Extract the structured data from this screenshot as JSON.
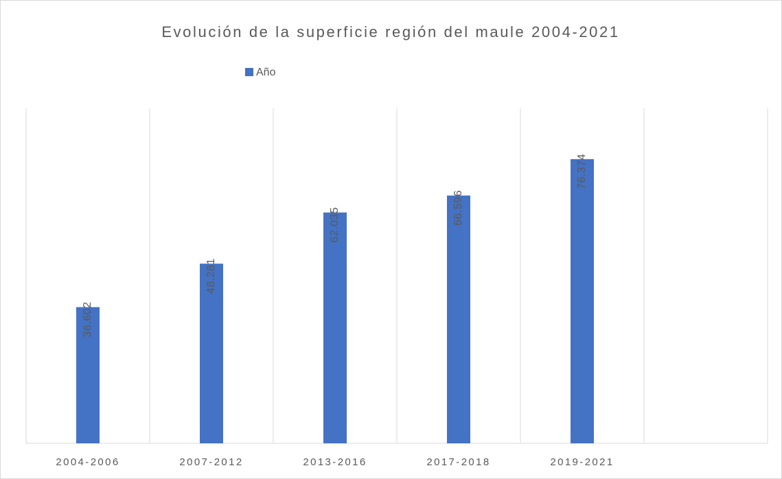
{
  "chart_data": {
    "type": "bar",
    "title": "Evolución de la superficie región del maule 2004-2021",
    "categories": [
      "2004-2006",
      "2007-2012",
      "2013-2016",
      "2017-2018",
      "2019-2021",
      null
    ],
    "series": [
      {
        "name": "Año",
        "color": "#4472c4",
        "values": [
          36.602,
          48.281,
          62.035,
          66.596,
          76.374,
          null
        ]
      }
    ],
    "ylim": [
      0,
      90
    ],
    "legend": "top",
    "grid": true
  }
}
